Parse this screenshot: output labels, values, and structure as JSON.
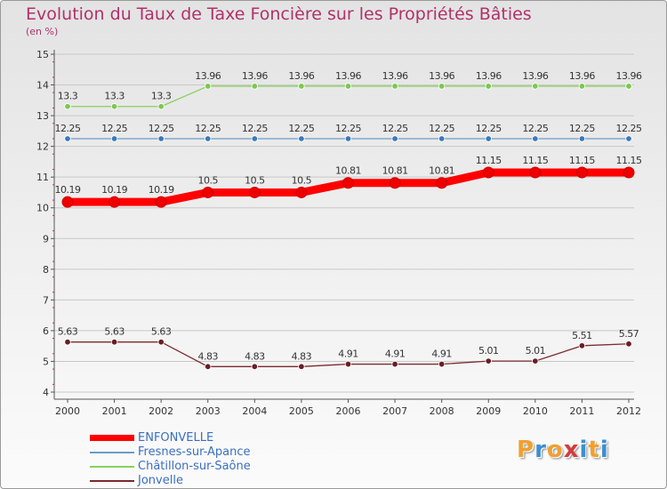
{
  "colors": {
    "title": "#b0316a",
    "axis": "#555555",
    "grid": "#c8c8c8",
    "tick_text": "#333333",
    "label_text": "#333333"
  },
  "logo": {
    "letters": [
      "P",
      "r",
      "o",
      "x",
      "i",
      "t",
      "i"
    ],
    "colors": [
      "#f0a030",
      "#3a8fd0",
      "#f0a030",
      "#d23c3c",
      "#3a8fd0",
      "#f0a030",
      "#3a8fd0"
    ]
  },
  "chart_data": {
    "type": "line",
    "title": "Evolution du Taux de Taxe Foncière sur les Propriétés Bâties",
    "ylabel": "(en %)",
    "xlabel": "",
    "x": [
      "2000",
      "2001",
      "2002",
      "2003",
      "2004",
      "2005",
      "2006",
      "2007",
      "2008",
      "2009",
      "2010",
      "2011",
      "2012"
    ],
    "ylim": [
      4,
      15
    ],
    "yticks": [
      "4",
      "5",
      "6",
      "7",
      "8",
      "9",
      "10",
      "11",
      "12",
      "13",
      "14",
      "15"
    ],
    "grid": "horizontal",
    "series": [
      {
        "name": "ENFONVELLE",
        "color": "#ff0000",
        "marker": "#ee0000",
        "bold": true,
        "values": [
          10.19,
          10.19,
          10.19,
          10.5,
          10.5,
          10.5,
          10.81,
          10.81,
          10.81,
          11.15,
          11.15,
          11.15,
          11.15
        ],
        "labels": [
          "10.19",
          "10.19",
          "10.19",
          "10.5",
          "10.5",
          "10.5",
          "10.81",
          "10.81",
          "10.81",
          "11.15",
          "11.15",
          "11.15",
          "11.15"
        ]
      },
      {
        "name": "Fresnes-sur-Apance",
        "color": "#6a9cc8",
        "marker": "#3a7ab8",
        "bold": false,
        "values": [
          12.25,
          12.25,
          12.25,
          12.25,
          12.25,
          12.25,
          12.25,
          12.25,
          12.25,
          12.25,
          12.25,
          12.25,
          12.25
        ],
        "labels": [
          "12.25",
          "12.25",
          "12.25",
          "12.25",
          "12.25",
          "12.25",
          "12.25",
          "12.25",
          "12.25",
          "12.25",
          "12.25",
          "12.25",
          "12.25"
        ]
      },
      {
        "name": "Châtillon-sur-Saône",
        "color": "#88d060",
        "marker": "#7cc850",
        "bold": false,
        "values": [
          13.3,
          13.3,
          13.3,
          13.96,
          13.96,
          13.96,
          13.96,
          13.96,
          13.96,
          13.96,
          13.96,
          13.96,
          13.96
        ],
        "labels": [
          "13.3",
          "13.3",
          "13.3",
          "13.96",
          "13.96",
          "13.96",
          "13.96",
          "13.96",
          "13.96",
          "13.96",
          "13.96",
          "13.96",
          "13.96"
        ]
      },
      {
        "name": "Jonvelle",
        "color": "#7a2a30",
        "marker": "#6a1e24",
        "bold": false,
        "values": [
          5.63,
          5.63,
          5.63,
          4.83,
          4.83,
          4.83,
          4.91,
          4.91,
          4.91,
          5.01,
          5.01,
          5.51,
          5.57
        ],
        "labels": [
          "5.63",
          "5.63",
          "5.63",
          "4.83",
          "4.83",
          "4.83",
          "4.91",
          "4.91",
          "4.91",
          "5.01",
          "5.01",
          "5.51",
          "5.57"
        ]
      }
    ]
  }
}
